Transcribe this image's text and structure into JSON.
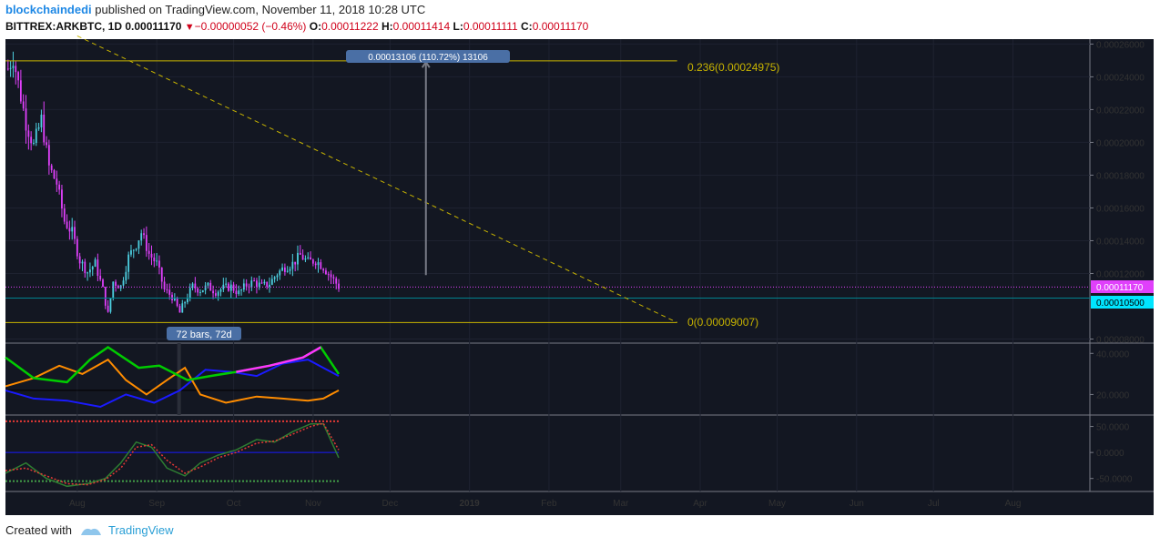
{
  "header": {
    "user": "blockchaindedi",
    "published": " published on TradingView.com, November 11, 2018 10:28 UTC",
    "symbol": "BITTREX:ARKBTC, 1D",
    "last": "0.00011170",
    "triangle": "▼",
    "change": "−0.00000052 (−0.46%)",
    "o_label": "O:",
    "o": "0.00011222",
    "h_label": "H:",
    "h": "0.00011414",
    "l_label": "L:",
    "l": "0.00011111",
    "c_label": "C:",
    "c": "0.00011170"
  },
  "footer": {
    "created": "Created with",
    "brand": "TradingView"
  },
  "colors": {
    "background": "#131722",
    "up": "#4dd0e1",
    "down": "#e040fb",
    "fib": "#c8b400",
    "price_tag": "#e040fb",
    "level_tag": "#00e5ff",
    "adx_plus": "#1a1aff",
    "adx_minus": "#ff8c00",
    "adx_main": "#00cc00",
    "adx_main_up": "#ff33ff",
    "osc_main": "#2e7d32",
    "osc_signal": "#e53935",
    "osc_blue": "#1a1aff"
  },
  "annotations": {
    "measure": "0.00013106 (110.72%) 13106",
    "bars": "72 bars, 72d",
    "fib_top": "0.236(0.00024975)",
    "fib_bottom": "0(0.00009007)",
    "price_tag": "0.00011170",
    "level_tag": "0.00010500"
  },
  "chart_data": [
    {
      "type": "candlestick",
      "name": "BITTREX:ARKBTC, 1D",
      "ylim": [
        7.75e-05,
        0.000263
      ],
      "y_ticks": [
        "0.00026000",
        "0.00024000",
        "0.00022000",
        "0.00020000",
        "0.00018000",
        "0.00016000",
        "0.00014000",
        "0.00012000",
        "0.00008000"
      ],
      "x_ticks": [
        "Aug",
        "Sep",
        "Oct",
        "Nov",
        "Dec",
        "2019",
        "Feb",
        "Mar",
        "Apr",
        "May",
        "Jun",
        "Jul",
        "Aug"
      ],
      "close_path": [
        [
          "2018-07-05",
          0.000245
        ],
        [
          "2018-07-07",
          0.000252
        ],
        [
          "2018-07-09",
          0.000236
        ],
        [
          "2018-07-12",
          0.000212
        ],
        [
          "2018-07-15",
          0.000198
        ],
        [
          "2018-07-18",
          0.000214
        ],
        [
          "2018-07-21",
          0.000185
        ],
        [
          "2018-07-24",
          0.000175
        ],
        [
          "2018-07-27",
          0.000152
        ],
        [
          "2018-07-30",
          0.000145
        ],
        [
          "2018-08-02",
          0.000128
        ],
        [
          "2018-08-05",
          0.000121
        ],
        [
          "2018-08-08",
          0.000126
        ],
        [
          "2018-08-11",
          0.00011
        ],
        [
          "2018-08-13",
          9.5e-05
        ],
        [
          "2018-08-15",
          0.000115
        ],
        [
          "2018-08-18",
          0.000112
        ],
        [
          "2018-08-21",
          0.00013
        ],
        [
          "2018-08-24",
          0.000138
        ],
        [
          "2018-08-26",
          0.000145
        ],
        [
          "2018-08-29",
          0.000132
        ],
        [
          "2018-09-01",
          0.000126
        ],
        [
          "2018-09-04",
          0.00011
        ],
        [
          "2018-09-07",
          0.000106
        ],
        [
          "2018-09-10",
          9.6e-05
        ],
        [
          "2018-09-12",
          0.000103
        ],
        [
          "2018-09-15",
          0.000112
        ],
        [
          "2018-09-18",
          0.00011
        ],
        [
          "2018-09-21",
          0.000112
        ],
        [
          "2018-09-24",
          0.000109
        ],
        [
          "2018-09-27",
          0.000111
        ],
        [
          "2018-09-30",
          0.000112
        ],
        [
          "2018-10-03",
          0.000108
        ],
        [
          "2018-10-06",
          0.000113
        ],
        [
          "2018-10-09",
          0.000115
        ],
        [
          "2018-10-12",
          0.000112
        ],
        [
          "2018-10-15",
          0.000114
        ],
        [
          "2018-10-18",
          0.00012
        ],
        [
          "2018-10-21",
          0.000124
        ],
        [
          "2018-10-24",
          0.000126
        ],
        [
          "2018-10-27",
          0.000131
        ],
        [
          "2018-10-30",
          0.000127
        ],
        [
          "2018-11-02",
          0.000128
        ],
        [
          "2018-11-05",
          0.000124
        ],
        [
          "2018-11-08",
          0.000118
        ],
        [
          "2018-11-11",
          0.000112
        ]
      ],
      "hlines": [
        {
          "label": "0.236(0.00024975)",
          "value": 0.00024975,
          "from": "2018-07-04",
          "to": "2019-03-23"
        },
        {
          "label": "0(0.00009007)",
          "value": 9.007e-05,
          "from": "2018-07-04",
          "to": "2019-03-23"
        },
        {
          "label": "0.00011170",
          "value": 0.0001117
        },
        {
          "label": "0.00010500",
          "value": 0.000105
        }
      ],
      "trend_line": {
        "from": [
          "2018-08-01",
          0.000265
        ],
        "to": [
          "2019-03-23",
          9.007e-05
        ]
      },
      "measure": {
        "x": "2018-12-15",
        "from": 0.000119,
        "to": 0.000249
      }
    },
    {
      "type": "line",
      "name": "ADX / DMI",
      "ylim": [
        10,
        45
      ],
      "y_ticks": [
        "40.0000",
        "20.0000"
      ],
      "reference": 22,
      "series": [
        {
          "name": "plus",
          "points": [
            [
              "2018-07-04",
              22
            ],
            [
              "2018-07-15",
              18
            ],
            [
              "2018-07-28",
              17
            ],
            [
              "2018-08-10",
              14
            ],
            [
              "2018-08-20",
              20
            ],
            [
              "2018-08-31",
              16
            ],
            [
              "2018-09-10",
              22
            ],
            [
              "2018-09-20",
              32
            ],
            [
              "2018-09-30",
              31
            ],
            [
              "2018-10-10",
              29
            ],
            [
              "2018-10-20",
              35
            ],
            [
              "2018-10-30",
              37
            ],
            [
              "2018-11-05",
              33
            ],
            [
              "2018-11-11",
              29
            ]
          ]
        },
        {
          "name": "minus",
          "points": [
            [
              "2018-07-04",
              24
            ],
            [
              "2018-07-15",
              28
            ],
            [
              "2018-07-25",
              34
            ],
            [
              "2018-08-03",
              30
            ],
            [
              "2018-08-13",
              37
            ],
            [
              "2018-08-20",
              27
            ],
            [
              "2018-08-28",
              20
            ],
            [
              "2018-09-05",
              27
            ],
            [
              "2018-09-12",
              33
            ],
            [
              "2018-09-18",
              20
            ],
            [
              "2018-09-28",
              16
            ],
            [
              "2018-10-10",
              19
            ],
            [
              "2018-10-20",
              18
            ],
            [
              "2018-10-30",
              17
            ],
            [
              "2018-11-05",
              18
            ],
            [
              "2018-11-11",
              22
            ]
          ]
        },
        {
          "name": "adx",
          "points": [
            [
              "2018-07-04",
              38
            ],
            [
              "2018-07-15",
              28
            ],
            [
              "2018-07-28",
              26
            ],
            [
              "2018-08-06",
              37
            ],
            [
              "2018-08-13",
              43
            ],
            [
              "2018-08-25",
              33
            ],
            [
              "2018-09-02",
              34
            ],
            [
              "2018-09-13",
              27
            ],
            [
              "2018-09-22",
              29
            ],
            [
              "2018-10-02",
              31
            ],
            [
              "2018-10-15",
              34
            ],
            [
              "2018-10-28",
              38
            ],
            [
              "2018-11-04",
              43
            ],
            [
              "2018-11-11",
              30
            ]
          ]
        }
      ]
    },
    {
      "type": "line",
      "name": "Oscillator",
      "ylim": [
        -75,
        72
      ],
      "y_ticks": [
        "50.0000",
        "0.0000",
        "-50.0000"
      ],
      "levels": [
        60,
        0,
        -55
      ],
      "series": [
        {
          "name": "main",
          "points": [
            [
              "2018-07-04",
              -40
            ],
            [
              "2018-07-12",
              -20
            ],
            [
              "2018-07-20",
              -50
            ],
            [
              "2018-07-28",
              -65
            ],
            [
              "2018-08-05",
              -60
            ],
            [
              "2018-08-12",
              -50
            ],
            [
              "2018-08-18",
              -20
            ],
            [
              "2018-08-24",
              20
            ],
            [
              "2018-08-30",
              10
            ],
            [
              "2018-09-05",
              -30
            ],
            [
              "2018-09-12",
              -45
            ],
            [
              "2018-09-18",
              -20
            ],
            [
              "2018-09-25",
              -5
            ],
            [
              "2018-10-02",
              5
            ],
            [
              "2018-10-10",
              25
            ],
            [
              "2018-10-17",
              20
            ],
            [
              "2018-10-24",
              40
            ],
            [
              "2018-10-31",
              55
            ],
            [
              "2018-11-05",
              55
            ],
            [
              "2018-11-11",
              -10
            ]
          ]
        },
        {
          "name": "signal",
          "points": [
            [
              "2018-07-04",
              -35
            ],
            [
              "2018-07-12",
              -30
            ],
            [
              "2018-07-20",
              -45
            ],
            [
              "2018-07-28",
              -60
            ],
            [
              "2018-08-05",
              -62
            ],
            [
              "2018-08-12",
              -52
            ],
            [
              "2018-08-18",
              -30
            ],
            [
              "2018-08-24",
              10
            ],
            [
              "2018-08-30",
              15
            ],
            [
              "2018-09-05",
              -15
            ],
            [
              "2018-09-12",
              -40
            ],
            [
              "2018-09-18",
              -28
            ],
            [
              "2018-09-25",
              -10
            ],
            [
              "2018-10-02",
              0
            ],
            [
              "2018-10-10",
              18
            ],
            [
              "2018-10-17",
              22
            ],
            [
              "2018-10-24",
              35
            ],
            [
              "2018-10-31",
              50
            ],
            [
              "2018-11-05",
              56
            ],
            [
              "2018-11-11",
              5
            ]
          ]
        }
      ]
    }
  ]
}
